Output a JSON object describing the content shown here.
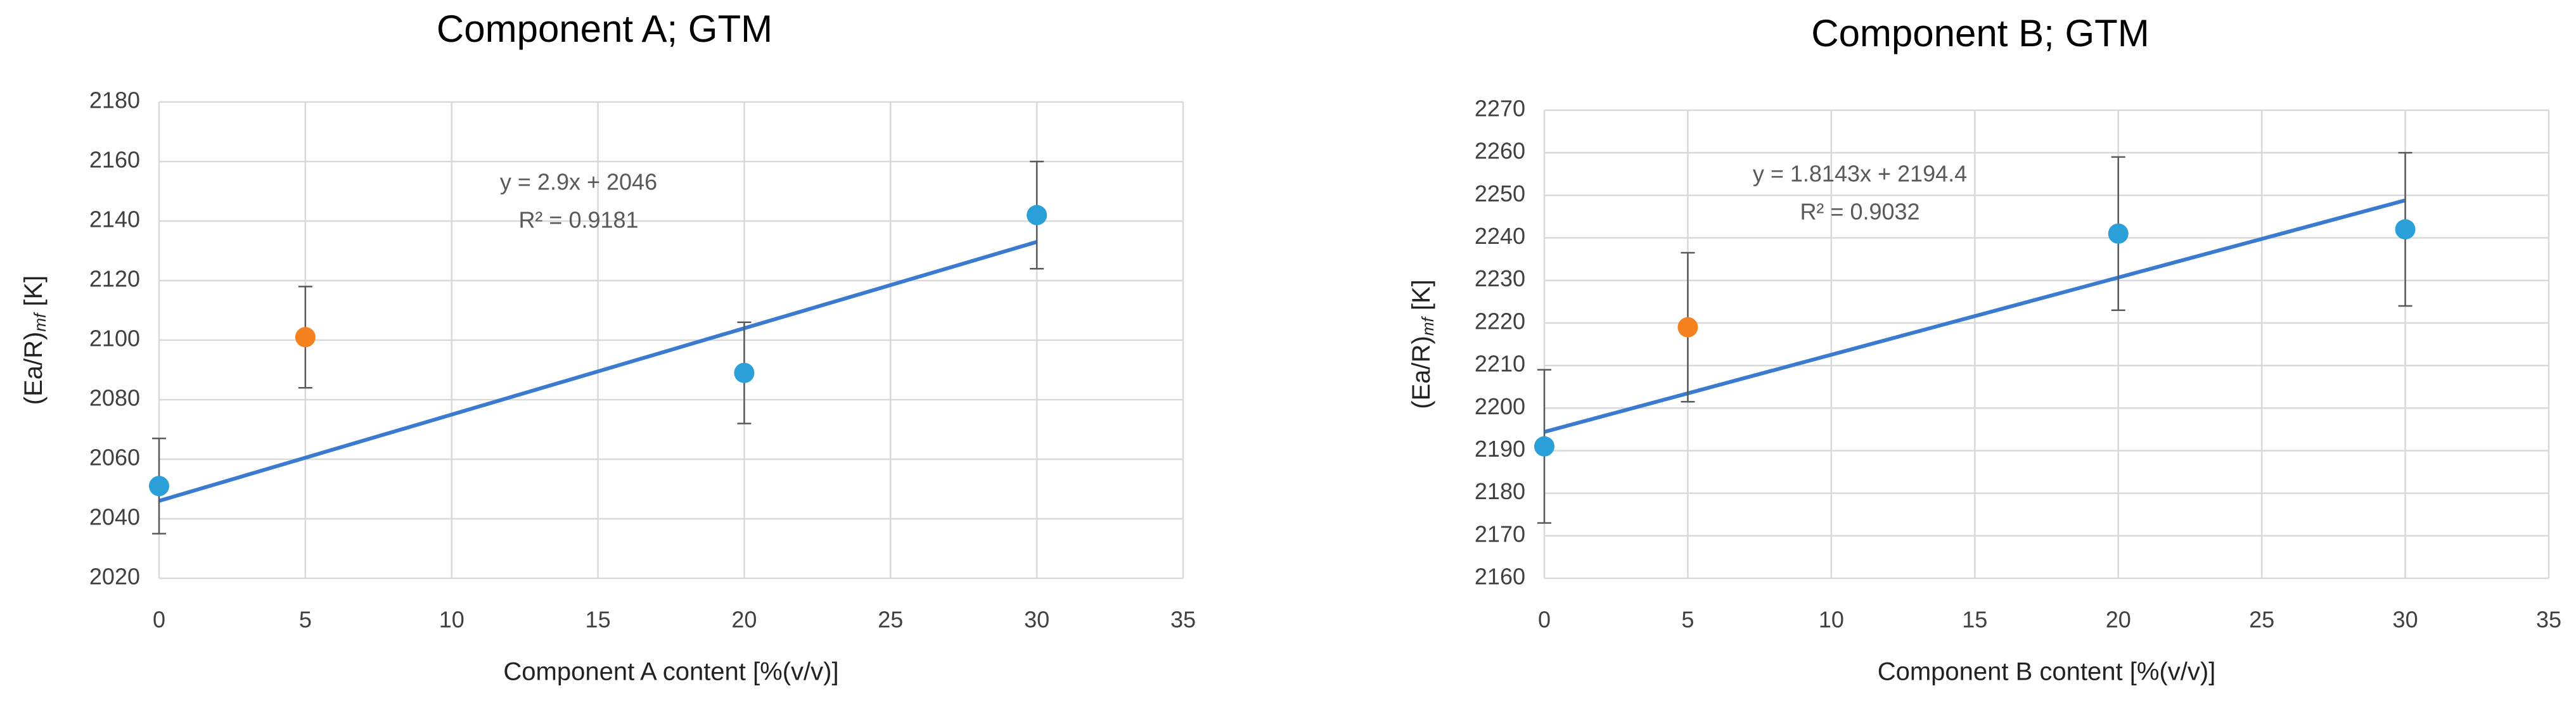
{
  "chart_data": [
    {
      "type": "scatter",
      "title": "Component A; GTM",
      "xlabel": "Component A content [%(v/v)]",
      "ylabel": [
        "(Ea/R)",
        "mf",
        " [K]"
      ],
      "xlim": [
        0,
        35
      ],
      "xticks": [
        0,
        5,
        10,
        15,
        20,
        25,
        30,
        35
      ],
      "ylim": [
        2020,
        2180
      ],
      "yticks": [
        2020,
        2040,
        2060,
        2080,
        2100,
        2120,
        2140,
        2160,
        2180
      ],
      "grid": true,
      "series": [
        {
          "color": "#2a9fd8",
          "x": [
            0,
            20,
            30
          ],
          "values": [
            2051,
            2089,
            2142
          ],
          "errors": [
            16,
            17,
            18
          ]
        },
        {
          "color": "#f5821f",
          "x": [
            5
          ],
          "values": [
            2101
          ],
          "errors": [
            17
          ]
        }
      ],
      "trendline": {
        "color": "#3a7bd0",
        "slope": 2.9,
        "intercept": 2046,
        "label": "y = 2.9x + 2046",
        "r2_label": "R² = 0.9181"
      }
    },
    {
      "type": "scatter",
      "title": "Component B; GTM",
      "xlabel": "Component B content [%(v/v)]",
      "ylabel": [
        "(Ea/R)",
        "mf",
        " [K]"
      ],
      "xlim": [
        0,
        35
      ],
      "xticks": [
        0,
        5,
        10,
        15,
        20,
        25,
        30,
        35
      ],
      "ylim": [
        2160,
        2270
      ],
      "yticks": [
        2160,
        2170,
        2180,
        2190,
        2200,
        2210,
        2220,
        2230,
        2240,
        2250,
        2260,
        2270
      ],
      "grid": true,
      "series": [
        {
          "color": "#2a9fd8",
          "x": [
            0,
            20,
            30
          ],
          "values": [
            2191,
            2241,
            2242
          ],
          "errors": [
            18,
            18,
            18
          ]
        },
        {
          "color": "#f5821f",
          "x": [
            5
          ],
          "values": [
            2219
          ],
          "errors": [
            17.5
          ]
        }
      ],
      "trendline": {
        "color": "#3a7bd0",
        "slope": 1.8143,
        "intercept": 2194.4,
        "label": "y = 1.8143x + 2194.4",
        "r2_label": "R² = 0.9032"
      }
    }
  ]
}
